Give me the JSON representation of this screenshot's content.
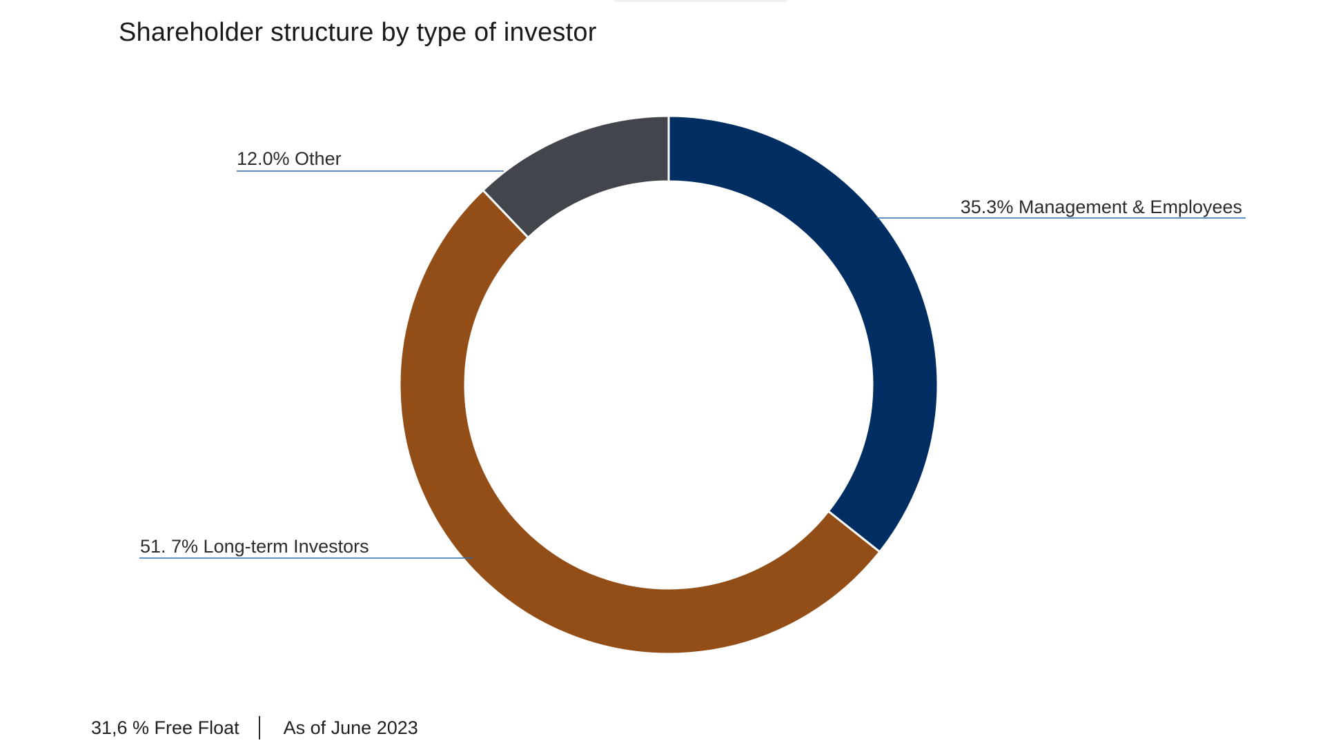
{
  "chart_data": {
    "type": "pie",
    "variant": "donut",
    "title": "Shareholder structure by type of investor",
    "slices": [
      {
        "label": "35.3% Management & Employees",
        "name": "Management & Employees",
        "value": 35.3,
        "color": "#002d62"
      },
      {
        "label": "51. 7% Long-term Investors",
        "name": "Long-term Investors",
        "value": 51.7,
        "color": "#934d17"
      },
      {
        "label": "12.0% Other",
        "name": "Other",
        "value": 12.0,
        "color": "#42454b"
      }
    ],
    "start": "12 o'clock",
    "direction": "clockwise",
    "leader_line_color": "#2f6bb0"
  },
  "footer": {
    "free_float": "31,6 % Free Float",
    "date": "As of June 2023"
  }
}
